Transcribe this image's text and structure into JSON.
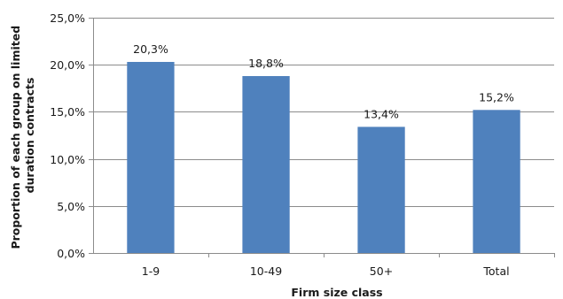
{
  "chart_data": {
    "type": "bar",
    "categories": [
      "1-9",
      "10-49",
      "50+",
      "Total"
    ],
    "values": [
      20.3,
      18.8,
      13.4,
      15.2
    ],
    "data_labels": [
      "20,3%",
      "18,8%",
      "13,4%",
      "15,2%"
    ],
    "xlabel": "Firm size class",
    "ylabel_lines": [
      "Proportion of each group on limited",
      "duration contracts"
    ],
    "ylim": [
      0,
      25
    ],
    "y_ticks": [
      0,
      5,
      10,
      15,
      20,
      25
    ],
    "y_tick_labels": [
      "0,0%",
      "5,0%",
      "10,0%",
      "15,0%",
      "20,0%",
      "25,0%"
    ],
    "grid": true,
    "legend": "none",
    "colors": {
      "bar": "#4F81BD",
      "grid": "#8c8c8c",
      "axis": "#8c8c8c",
      "text": "#1a1a1a"
    }
  }
}
